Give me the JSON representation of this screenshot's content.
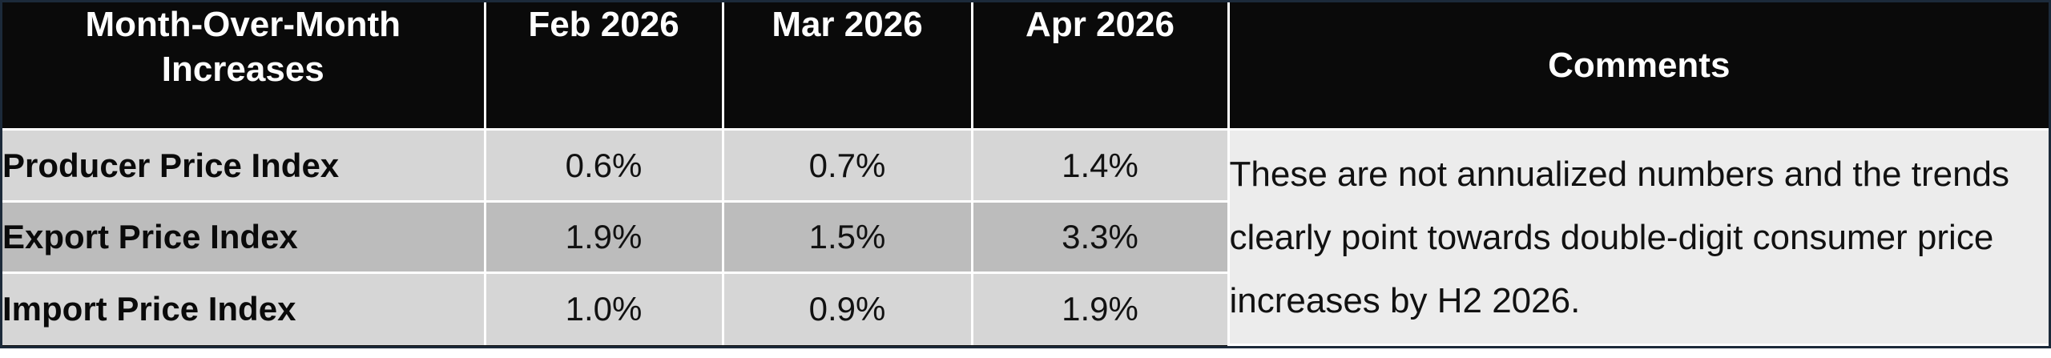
{
  "table": {
    "header": {
      "first_col": "Month-Over-Month Increases",
      "months": [
        "Feb 2026",
        "Mar 2026",
        "Apr 2026"
      ],
      "comments": "Comments"
    },
    "rows": [
      {
        "label": "Producer Price Index",
        "values": [
          "0.6%",
          "0.7%",
          "1.4%"
        ]
      },
      {
        "label": "Export Price Index",
        "values": [
          "1.9%",
          "1.5%",
          "3.3%"
        ]
      },
      {
        "label": "Import Price Index",
        "values": [
          "1.0%",
          "0.9%",
          "1.9%"
        ]
      }
    ],
    "comment_text": "These are not annualized numbers and the trends clearly point towards double-digit consumer price increases by H2 2026."
  },
  "colors": {
    "header_bg": "#0a0a0a",
    "row_light": "#d6d6d6",
    "row_dark": "#bcbcbc",
    "comments_bg": "#ececec",
    "frame_border": "#1c2a3a"
  }
}
